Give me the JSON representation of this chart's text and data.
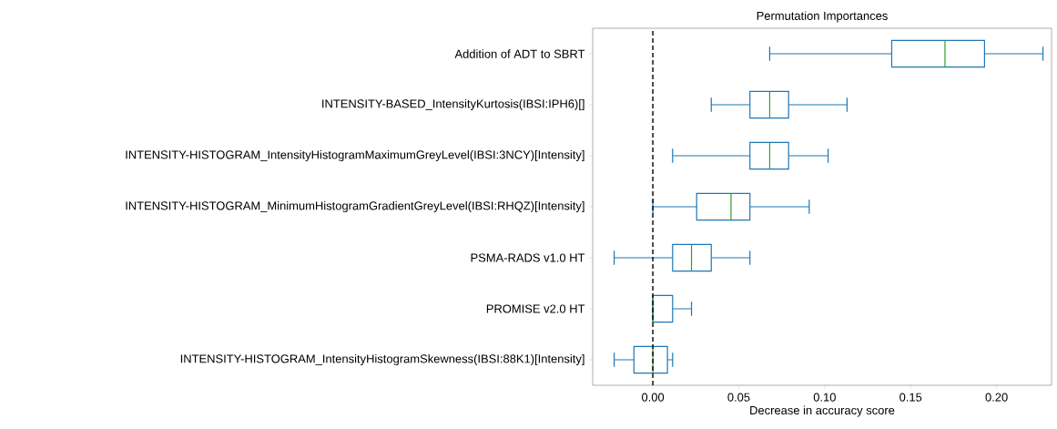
{
  "chart_data": {
    "type": "box",
    "orientation": "horizontal",
    "title": "Permutation Importances",
    "xlabel": "Decrease in accuracy score",
    "categories": [
      "Addition of ADT to SBRT",
      "INTENSITY-BASED_IntensityKurtosis(IBSI:IPH6)[]",
      "INTENSITY-HISTOGRAM_IntensityHistogramMaximumGreyLevel(IBSI:3NCY)[Intensity]",
      "INTENSITY-HISTOGRAM_MinimumHistogramGradientGreyLevel(IBSI:RHQZ)[Intensity]",
      "PSMA-RADS v1.0 HT",
      "PROMISE v2.0 HT",
      "INTENSITY-HISTOGRAM_IntensityHistogramSkewness(IBSI:88K1)[Intensity]"
    ],
    "series": [
      {
        "color": "#1f77b4",
        "boxes": [
          {
            "low": 0.068,
            "q1": 0.139,
            "median": 0.17,
            "q3": 0.193,
            "high": 0.227
          },
          {
            "low": 0.034,
            "q1": 0.0565,
            "median": 0.068,
            "q3": 0.079,
            "high": 0.113
          },
          {
            "low": 0.0115,
            "q1": 0.0565,
            "median": 0.068,
            "q3": 0.079,
            "high": 0.102
          },
          {
            "low": 0.0,
            "q1": 0.0255,
            "median": 0.0455,
            "q3": 0.0565,
            "high": 0.091
          },
          {
            "low": -0.0225,
            "q1": 0.0115,
            "median": 0.0225,
            "q3": 0.034,
            "high": 0.0565
          },
          {
            "low": 0.0,
            "q1": 0.0,
            "median": 0.0,
            "q3": 0.0115,
            "high": 0.0225
          },
          {
            "low": -0.0225,
            "q1": -0.011,
            "median": 0.0,
            "q3": 0.0085,
            "high": 0.0115
          }
        ]
      }
    ],
    "xlim": [
      -0.035,
      0.232
    ],
    "xticks": [
      {
        "value": 0,
        "label": "0.00"
      },
      {
        "value": 0.05,
        "label": "0.05"
      },
      {
        "value": 0.1,
        "label": "0.10"
      },
      {
        "value": 0.15,
        "label": "0.15"
      },
      {
        "value": 0.2,
        "label": "0.20"
      }
    ],
    "ref_lines": [
      {
        "axis": "x",
        "value": 0,
        "color": "#000000",
        "line_style": "dashed"
      }
    ]
  }
}
